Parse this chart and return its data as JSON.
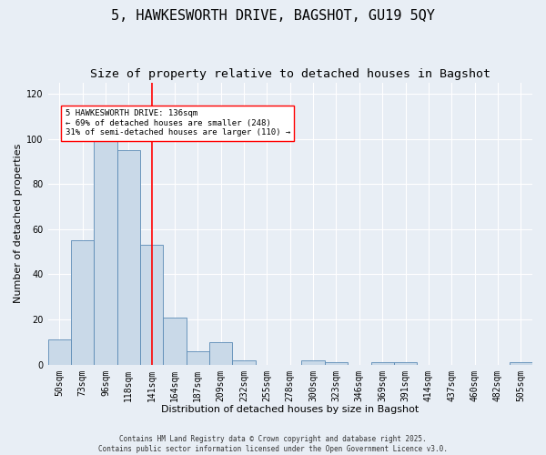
{
  "title1": "5, HAWKESWORTH DRIVE, BAGSHOT, GU19 5QY",
  "title2": "Size of property relative to detached houses in Bagshot",
  "xlabel": "Distribution of detached houses by size in Bagshot",
  "ylabel": "Number of detached properties",
  "bins": [
    "50sqm",
    "73sqm",
    "96sqm",
    "118sqm",
    "141sqm",
    "164sqm",
    "187sqm",
    "209sqm",
    "232sqm",
    "255sqm",
    "278sqm",
    "300sqm",
    "323sqm",
    "346sqm",
    "369sqm",
    "391sqm",
    "414sqm",
    "437sqm",
    "460sqm",
    "482sqm",
    "505sqm"
  ],
  "values": [
    11,
    55,
    100,
    95,
    53,
    21,
    6,
    10,
    2,
    0,
    0,
    2,
    1,
    0,
    1,
    1,
    0,
    0,
    0,
    0,
    1
  ],
  "bar_color": "#c9d9e8",
  "bar_edge_color": "#5a8ab5",
  "vline_x": 4.0,
  "vline_color": "red",
  "annotation_text": "5 HAWKESWORTH DRIVE: 136sqm\n← 69% of detached houses are smaller (248)\n31% of semi-detached houses are larger (110) →",
  "annotation_box_color": "white",
  "annotation_box_edge_color": "red",
  "ylim": [
    0,
    125
  ],
  "yticks": [
    0,
    20,
    40,
    60,
    80,
    100,
    120
  ],
  "background_color": "#e8eef5",
  "footer_text": "Contains HM Land Registry data © Crown copyright and database right 2025.\nContains public sector information licensed under the Open Government Licence v3.0.",
  "title_fontsize": 11,
  "subtitle_fontsize": 9.5,
  "axis_fontsize": 8,
  "tick_fontsize": 7,
  "footer_fontsize": 5.5
}
